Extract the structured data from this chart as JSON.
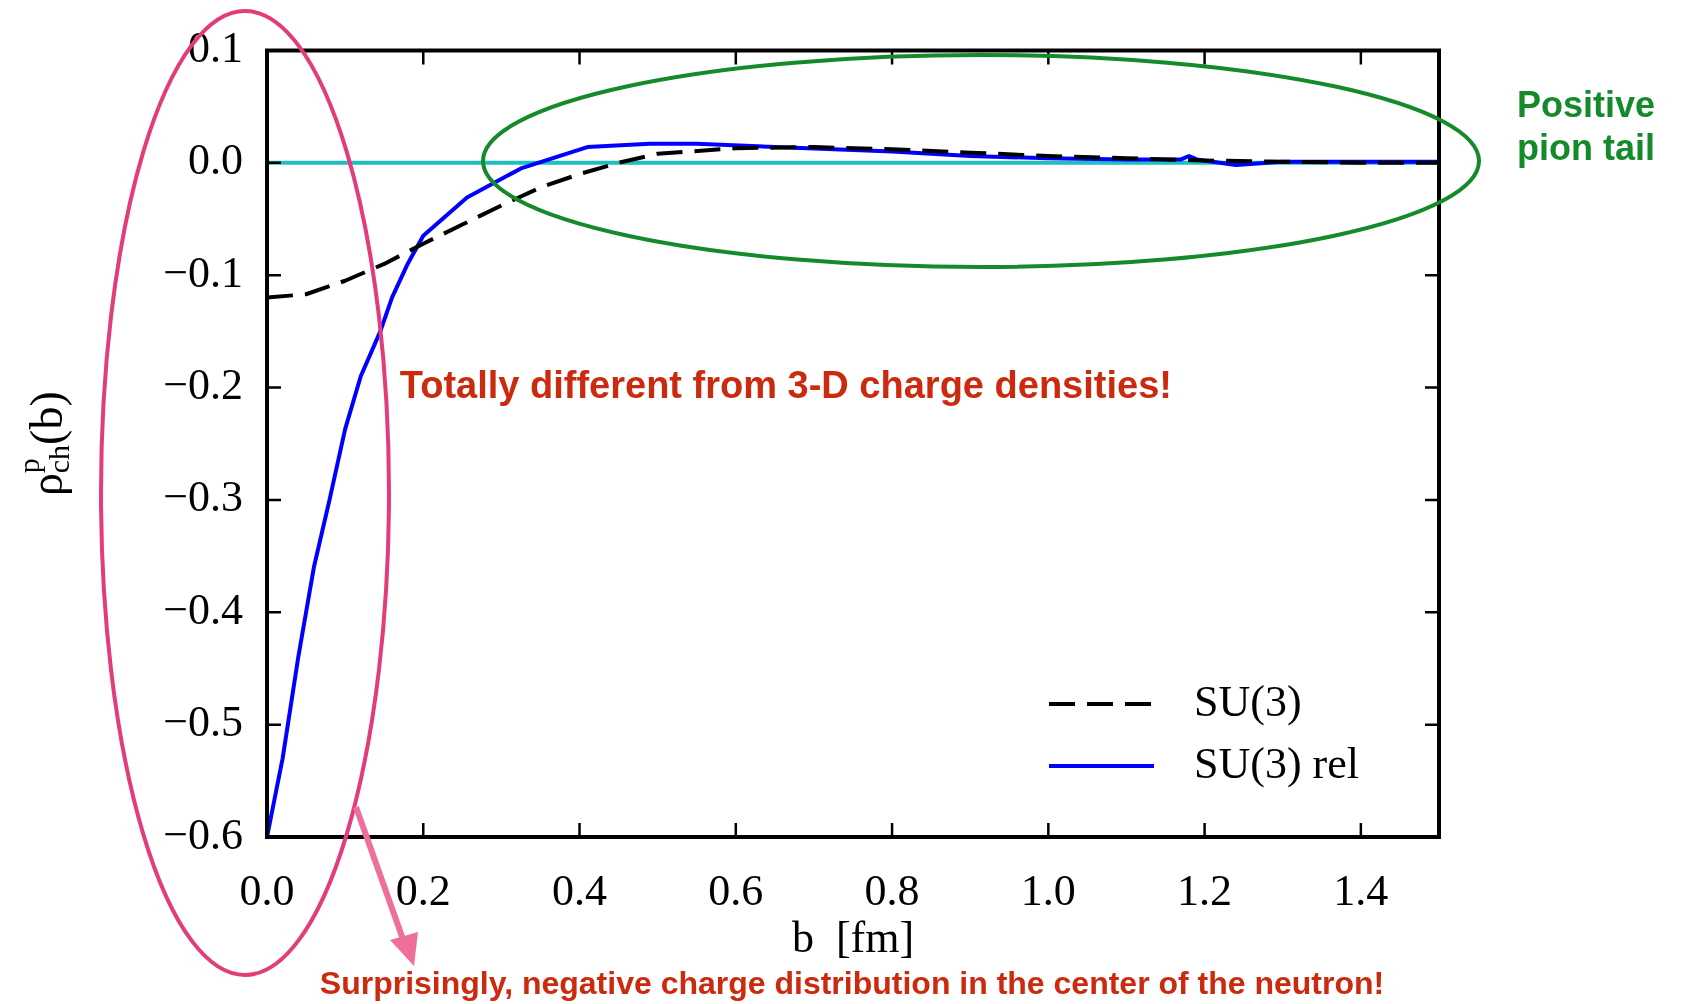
{
  "chart_data": {
    "type": "line",
    "xlabel": "b  [fm]",
    "ylabel": "ρ$^{p}$$_{ch}$(b)",
    "xlim": [
      0,
      1.5
    ],
    "xticks": [
      {
        "value": 0,
        "label": "0.0"
      },
      0.2,
      0.4,
      0.6,
      0.8,
      {
        "value": 1,
        "label": "1.0"
      },
      1.2,
      1.4
    ],
    "ylim": [
      -0.6,
      0.1
    ],
    "yticks": [
      {
        "value": -0.6,
        "label": "−0.6"
      },
      {
        "value": -0.5,
        "label": "−0.5"
      },
      {
        "value": -0.4,
        "label": "−0.4"
      },
      {
        "value": -0.3,
        "label": "−0.3"
      },
      {
        "value": -0.2,
        "label": "−0.2"
      },
      {
        "value": -0.1,
        "label": "−0.1"
      },
      {
        "value": 0,
        "label": "0.0"
      },
      0.1
    ],
    "series": [
      {
        "name": "SU(3)",
        "color": "#000000",
        "line_style": "dashed",
        "x": [
          0,
          0.05,
          0.1,
          0.15,
          0.2,
          0.25,
          0.3,
          0.35,
          0.4,
          0.45,
          0.5,
          0.6,
          0.7,
          0.8,
          0.9,
          1.0,
          1.1,
          1.2,
          1.3,
          1.4,
          1.5
        ],
        "values": [
          -0.12,
          -0.117,
          -0.105,
          -0.09,
          -0.072,
          -0.055,
          -0.038,
          -0.022,
          -0.01,
          0.0,
          0.008,
          0.013,
          0.014,
          0.012,
          0.009,
          0.006,
          0.004,
          0.002,
          0.001,
          0.0,
          0.0
        ]
      },
      {
        "name": "SU(3) rel",
        "color": "#0000ff",
        "line_style": "solid",
        "x": [
          0,
          0.02,
          0.04,
          0.06,
          0.08,
          0.1,
          0.12,
          0.145,
          0.16,
          0.18,
          0.2,
          0.256,
          0.325,
          0.41,
          0.49,
          0.55,
          0.65,
          0.8,
          0.9,
          1.0,
          1.1,
          1.17,
          1.18,
          1.19,
          1.24,
          1.3,
          1.4,
          1.5
        ],
        "values": [
          -0.6,
          -0.53,
          -0.44,
          -0.36,
          -0.3,
          -0.237,
          -0.19,
          -0.15,
          -0.12,
          -0.09,
          -0.065,
          -0.031,
          -0.005,
          0.014,
          0.017,
          0.017,
          0.014,
          0.01,
          0.006,
          0.004,
          0.003,
          0.003,
          0.006,
          0.003,
          -0.002,
          0.001,
          0.001,
          0.001
        ]
      }
    ],
    "ref_lines": [
      {
        "axis": "y",
        "value": 0,
        "color": "#1fbfbf"
      }
    ],
    "legend": "bottom right",
    "marker": "none",
    "grid": false,
    "annotations": [
      "Totally different from 3-D charge densities!",
      "Positive\npion tail",
      "Surprisingly, negative charge distribution in the center of the neutron!"
    ]
  }
}
